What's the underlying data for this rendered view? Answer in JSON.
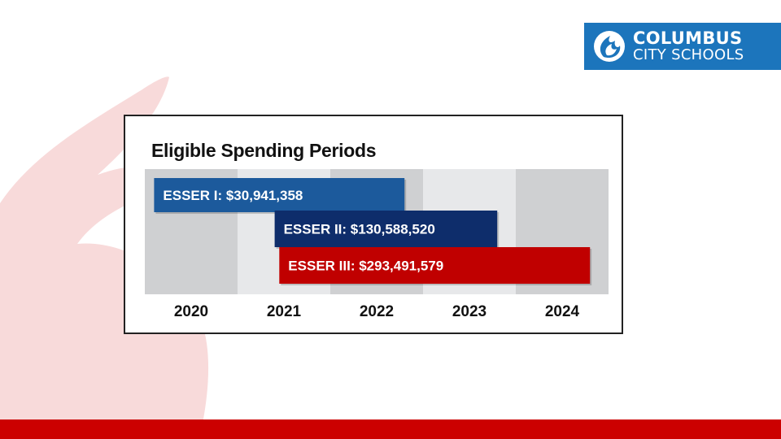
{
  "logo": {
    "line1": "COLUMBUS",
    "line2": "CITY SCHOOLS",
    "background": "#1c75bc"
  },
  "colors": {
    "brand_red": "#cc0000",
    "flame_tint": "#f8dada",
    "band_dark": "#cfd0d2",
    "band_light": "#e7e8ea"
  },
  "chart_data": {
    "type": "bar",
    "orientation": "horizontal",
    "title": "Eligible Spending Periods",
    "categories": [
      "2020",
      "2021",
      "2022",
      "2023",
      "2024"
    ],
    "xlim": [
      2020,
      2025
    ],
    "series": [
      {
        "name": "ESSER I",
        "label": "ESSER I: $30,941,358",
        "amount": 30941358,
        "start": 2020.1,
        "end": 2022.8,
        "color": "#1c5a9c"
      },
      {
        "name": "ESSER II",
        "label": "ESSER II: $130,588,520",
        "amount": 130588520,
        "start": 2021.4,
        "end": 2023.8,
        "color": "#0e2d6b"
      },
      {
        "name": "ESSER III",
        "label": "ESSER III: $293,491,579",
        "amount": 293491579,
        "start": 2021.45,
        "end": 2024.8,
        "color": "#c00000"
      }
    ]
  }
}
